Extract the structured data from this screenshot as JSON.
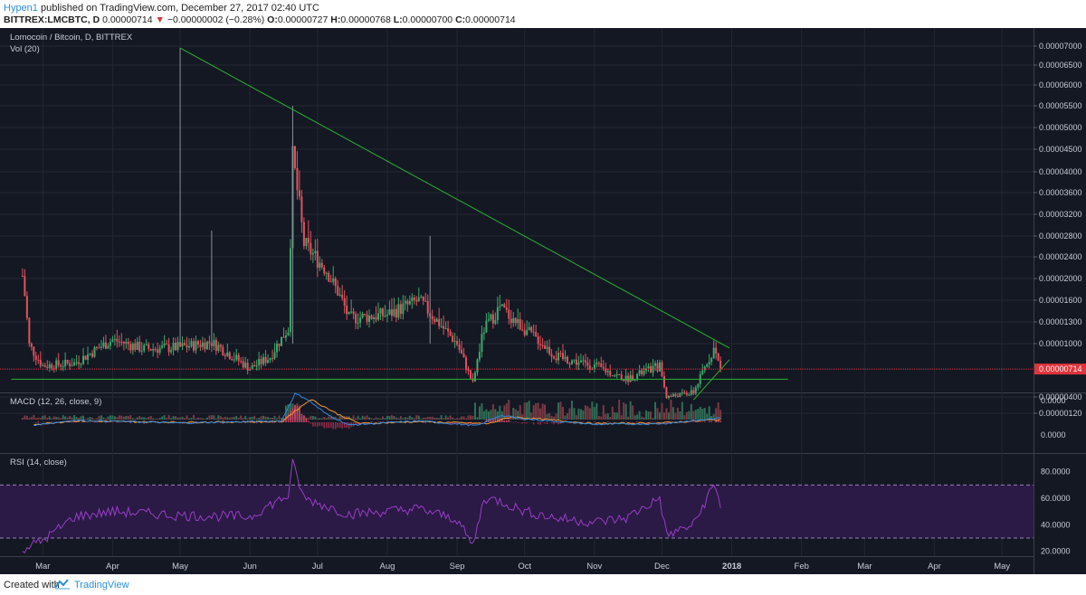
{
  "header": {
    "author": "Hypen1",
    "published": " published on TradingView.com, December 27, 2017 02:40 UTC",
    "symbol": "BITTREX:LMCBTC, D",
    "price": "0.00000714",
    "change_arrow": "▼",
    "change": "−0.00000002 (−0.28%)",
    "o_label": "O:",
    "o_value": "0.00000727",
    "h_label": "H:",
    "h_value": "0.00000768",
    "l_label": "L:",
    "l_value": "0.00000700",
    "c_label": "C:",
    "c_value": "0.00000714"
  },
  "footer": {
    "created": "Created with",
    "brand": "TradingView"
  },
  "colors": {
    "background": "#141823",
    "bull": "#3ea86a",
    "bear": "#e0535d",
    "trend": "#27b431",
    "last_price": "#e0343c",
    "macd": "#2f8ae0",
    "signal": "#f19a2f",
    "rsi": "#9c3cc9",
    "rsi_band": "#2a1a45"
  },
  "chart_data": [
    {
      "type": "candlestick",
      "title": "Lomocoin / Bitcoin, D, BITTREX",
      "volume_label": "Vol (20)",
      "y_ticks": [
        "0.00007000",
        "0.00006500",
        "0.00006000",
        "0.00005500",
        "0.00005000",
        "0.00004500",
        "0.00004000",
        "0.00003600",
        "0.00003200",
        "0.00002800",
        "0.00002400",
        "0.00002000",
        "0.00001600",
        "0.00001300",
        "0.00001000",
        "0.00000400",
        "0.00000120"
      ],
      "last_price": "0.00000714",
      "x_ticks": [
        "Mar",
        "Apr",
        "May",
        "Jun",
        "Jul",
        "Aug",
        "Sep",
        "Oct",
        "Nov",
        "Dec",
        "2018",
        "Feb",
        "Mar",
        "Apr",
        "May"
      ],
      "x_range": [
        "2017-02-10",
        "2018-05-15"
      ],
      "anchors": [
        [
          "2017-02-20",
          2.05e-05
        ],
        [
          "2017-02-23",
          9.8e-06
        ],
        [
          "2017-03-01",
          7.5e-06
        ],
        [
          "2017-03-15",
          7.8e-06
        ],
        [
          "2017-04-01",
          1.05e-05
        ],
        [
          "2017-04-15",
          9.4e-06
        ],
        [
          "2017-05-01",
          9.6e-06
        ],
        [
          "2017-05-15",
          1.02e-05
        ],
        [
          "2017-06-01",
          7.2e-06
        ],
        [
          "2017-06-10",
          8.5e-06
        ],
        [
          "2017-06-18",
          1.2e-05
        ],
        [
          "2017-06-20",
          4.3e-05
        ],
        [
          "2017-06-25",
          2.65e-05
        ],
        [
          "2017-07-05",
          2.15e-05
        ],
        [
          "2017-07-15",
          1.35e-05
        ],
        [
          "2017-08-01",
          1.4e-05
        ],
        [
          "2017-08-15",
          1.6e-05
        ],
        [
          "2017-09-01",
          1e-05
        ],
        [
          "2017-09-08",
          5.5e-06
        ],
        [
          "2017-09-13",
          1.2e-05
        ],
        [
          "2017-09-20",
          1.5e-05
        ],
        [
          "2017-10-01",
          1.2e-05
        ],
        [
          "2017-10-15",
          8.5e-06
        ],
        [
          "2017-11-01",
          7.5e-06
        ],
        [
          "2017-11-15",
          6e-06
        ],
        [
          "2017-11-30",
          7.5e-06
        ],
        [
          "2017-12-03",
          4e-06
        ],
        [
          "2017-12-15",
          4.5e-06
        ],
        [
          "2017-12-24",
          9.5e-06
        ],
        [
          "2017-12-27",
          7.14e-06
        ]
      ],
      "trendlines": [
        {
          "from": [
            "2017-05-01",
            6.95e-05
          ],
          "to": [
            "2017-12-31",
            9.5e-06
          ]
        },
        {
          "from": [
            "2017-02-15",
            6e-06
          ],
          "to": [
            "2018-01-26",
            6e-06
          ]
        },
        {
          "from": [
            "2017-12-15",
            3.5e-06
          ],
          "to": [
            "2017-12-31",
            8.2e-06
          ]
        }
      ]
    },
    {
      "type": "line",
      "title": "MACD (12, 26, close, 9)",
      "y_ticks": [
        "0.0000",
        "0.0000"
      ],
      "series": [
        {
          "name": "MACD",
          "anchors": [
            [
              "2017-02-25",
              -0.4
            ],
            [
              "2017-03-15",
              0.3
            ],
            [
              "2017-05-01",
              -0.1
            ],
            [
              "2017-06-15",
              0.2
            ],
            [
              "2017-06-21",
              4.2
            ],
            [
              "2017-06-26",
              3.5
            ],
            [
              "2017-07-05",
              1.2
            ],
            [
              "2017-07-15",
              -0.4
            ],
            [
              "2017-08-15",
              0.2
            ],
            [
              "2017-09-10",
              -0.5
            ],
            [
              "2017-09-20",
              1.0
            ],
            [
              "2017-10-01",
              0.5
            ],
            [
              "2017-11-01",
              -0.3
            ],
            [
              "2017-12-01",
              -0.2
            ],
            [
              "2017-12-27",
              0.6
            ]
          ]
        },
        {
          "name": "Signal",
          "anchors": [
            [
              "2017-02-25",
              -0.3
            ],
            [
              "2017-03-15",
              0.2
            ],
            [
              "2017-05-01",
              0.0
            ],
            [
              "2017-06-15",
              0.1
            ],
            [
              "2017-06-28",
              3.4
            ],
            [
              "2017-07-10",
              1.2
            ],
            [
              "2017-07-20",
              -0.2
            ],
            [
              "2017-08-15",
              0.1
            ],
            [
              "2017-09-15",
              -0.2
            ],
            [
              "2017-09-25",
              0.8
            ],
            [
              "2017-10-10",
              0.4
            ],
            [
              "2017-11-01",
              -0.2
            ],
            [
              "2017-12-01",
              -0.1
            ],
            [
              "2017-12-27",
              0.4
            ]
          ]
        }
      ]
    },
    {
      "type": "line",
      "title": "RSI (14, close)",
      "y_ticks": [
        "80.0000",
        "60.0000",
        "40.0000",
        "20.0000"
      ],
      "bands": [
        30,
        70
      ],
      "ylim": [
        17,
        90
      ],
      "series": [
        {
          "name": "RSI",
          "anchors": [
            [
              "2017-02-20",
              22
            ],
            [
              "2017-03-01",
              28
            ],
            [
              "2017-03-15",
              46
            ],
            [
              "2017-04-01",
              50
            ],
            [
              "2017-05-01",
              47
            ],
            [
              "2017-06-01",
              46
            ],
            [
              "2017-06-10",
              55
            ],
            [
              "2017-06-18",
              62
            ],
            [
              "2017-06-20",
              86
            ],
            [
              "2017-06-25",
              60
            ],
            [
              "2017-07-15",
              48
            ],
            [
              "2017-08-15",
              52
            ],
            [
              "2017-09-01",
              44
            ],
            [
              "2017-09-08",
              24
            ],
            [
              "2017-09-13",
              60
            ],
            [
              "2017-09-20",
              58
            ],
            [
              "2017-10-01",
              50
            ],
            [
              "2017-10-15",
              45
            ],
            [
              "2017-11-01",
              42
            ],
            [
              "2017-11-15",
              45
            ],
            [
              "2017-11-30",
              60
            ],
            [
              "2017-12-03",
              32
            ],
            [
              "2017-12-15",
              40
            ],
            [
              "2017-12-24",
              70
            ],
            [
              "2017-12-27",
              55
            ]
          ]
        }
      ]
    }
  ]
}
